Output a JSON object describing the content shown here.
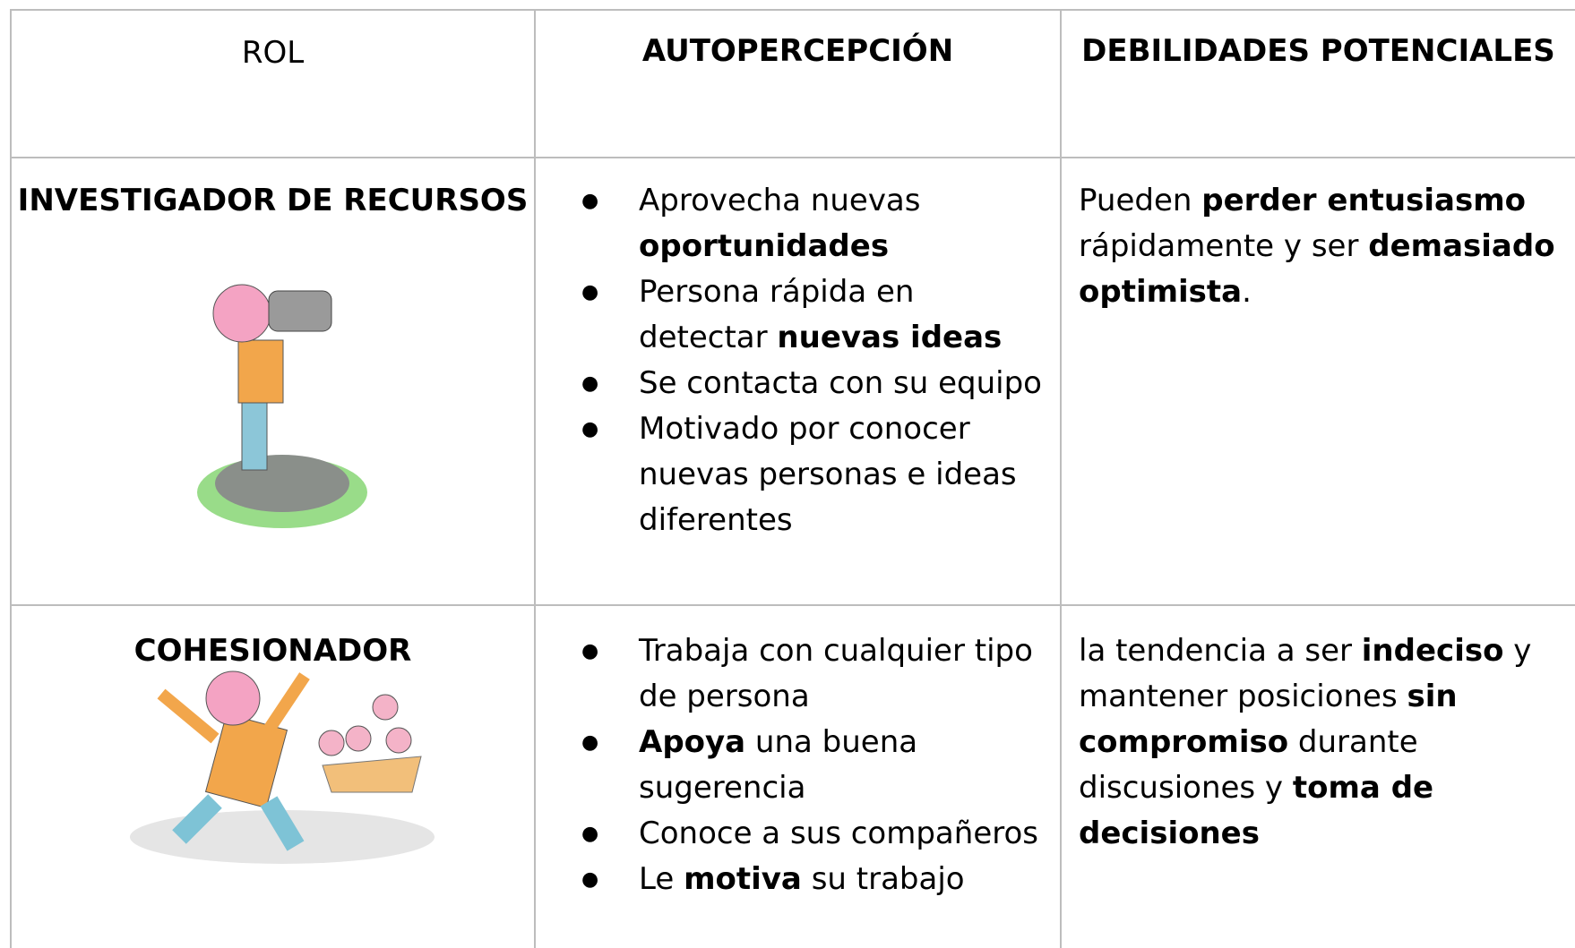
{
  "table": {
    "header": [
      "ROL",
      "AUTOPERCEPCIÓN",
      "DEBILIDADES POTENCIALES"
    ],
    "rows": [
      {
        "role": "INVESTIGADOR DE RECURSOS",
        "traits": [
          [
            {
              "text": "Aprovecha nuevas "
            },
            {
              "text": "oportunidades",
              "bold": true
            }
          ],
          [
            {
              "text": "Persona rápida en detectar "
            },
            {
              "text": "nuevas ideas",
              "bold": true
            }
          ],
          [
            {
              "text": "Se contacta con su equipo"
            }
          ],
          [
            {
              "text": "Motivado por conocer nuevas personas e ideas diferentes"
            }
          ]
        ],
        "weaknesses": [
          {
            "text": "Pueden "
          },
          {
            "text": "perder entusiasmo",
            "bold": true
          },
          {
            "text": " rápidamente y ser "
          },
          {
            "text": "demasiado optimista",
            "bold": true
          },
          {
            "text": "."
          }
        ]
      },
      {
        "role": "COHESIONADOR",
        "traits": [
          [
            {
              "text": "Trabaja con cualquier tipo de persona"
            }
          ],
          [
            {
              "text": "Apoya",
              "bold": true
            },
            {
              "text": " una buena sugerencia"
            }
          ],
          [
            {
              "text": "Conoce a sus compañeros"
            }
          ],
          [
            {
              "text": "Le "
            },
            {
              "text": "motiva",
              "bold": true
            },
            {
              "text": " su trabajo"
            }
          ]
        ],
        "weaknesses": [
          {
            "text": "la tendencia a ser "
          },
          {
            "text": "indeciso",
            "bold": true
          },
          {
            "text": " y mantener posiciones "
          },
          {
            "text": "sin compromiso",
            "bold": true
          },
          {
            "text": " durante discusiones y "
          },
          {
            "text": "toma de decisiones",
            "bold": true
          }
        ]
      }
    ]
  }
}
